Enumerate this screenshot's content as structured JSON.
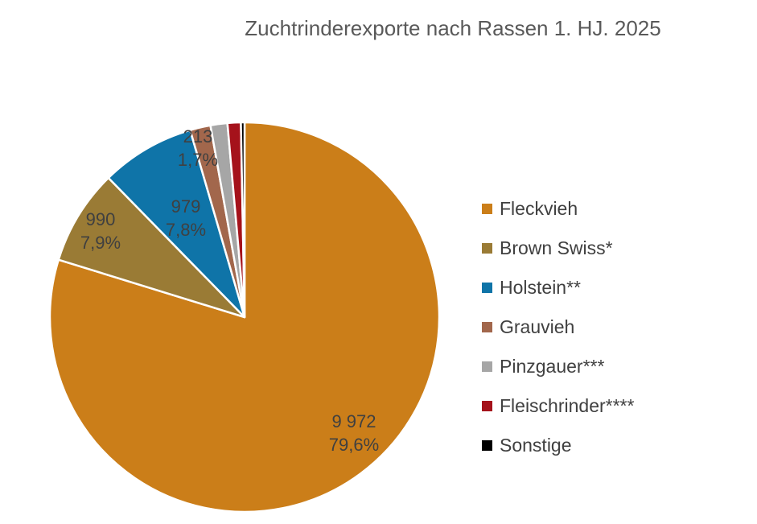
{
  "title": "Zuchtrinderexporte nach Rassen 1. HJ. 2025",
  "chart_data": {
    "type": "pie",
    "title": "Zuchtrinderexporte nach Rassen 1. HJ. 2025",
    "start_angle_deg": 0,
    "direction": "clockwise",
    "legend_position": "right",
    "border_color": "#ffffff",
    "title_color": "#595959",
    "label_color": "#404040",
    "slices": [
      {
        "label": "Fleckvieh",
        "value": 9972,
        "pct": 79.6,
        "value_label": "9 972",
        "pct_label": "79,6%",
        "color": "#CB7E19"
      },
      {
        "label": "Brown Swiss*",
        "value": 990,
        "pct": 7.9,
        "value_label": "990",
        "pct_label": "7,9%",
        "color": "#9A7B35"
      },
      {
        "label": "Holstein**",
        "value": 979,
        "pct": 7.8,
        "value_label": "979",
        "pct_label": "7,8%",
        "color": "#0F74A8"
      },
      {
        "label": "Grauvieh",
        "value": 213,
        "pct": 1.7,
        "value_label": "213",
        "pct_label": "1,7%",
        "color": "#A2674C"
      },
      {
        "label": "Pinzgauer***",
        "pct": 1.4,
        "estimated": true,
        "color": "#A6A6A6"
      },
      {
        "label": "Fleischrinder****",
        "pct": 1.1,
        "estimated": true,
        "color": "#A5121B"
      },
      {
        "label": "Sonstige",
        "pct": 0.3,
        "estimated": true,
        "color": "#000000"
      }
    ]
  }
}
